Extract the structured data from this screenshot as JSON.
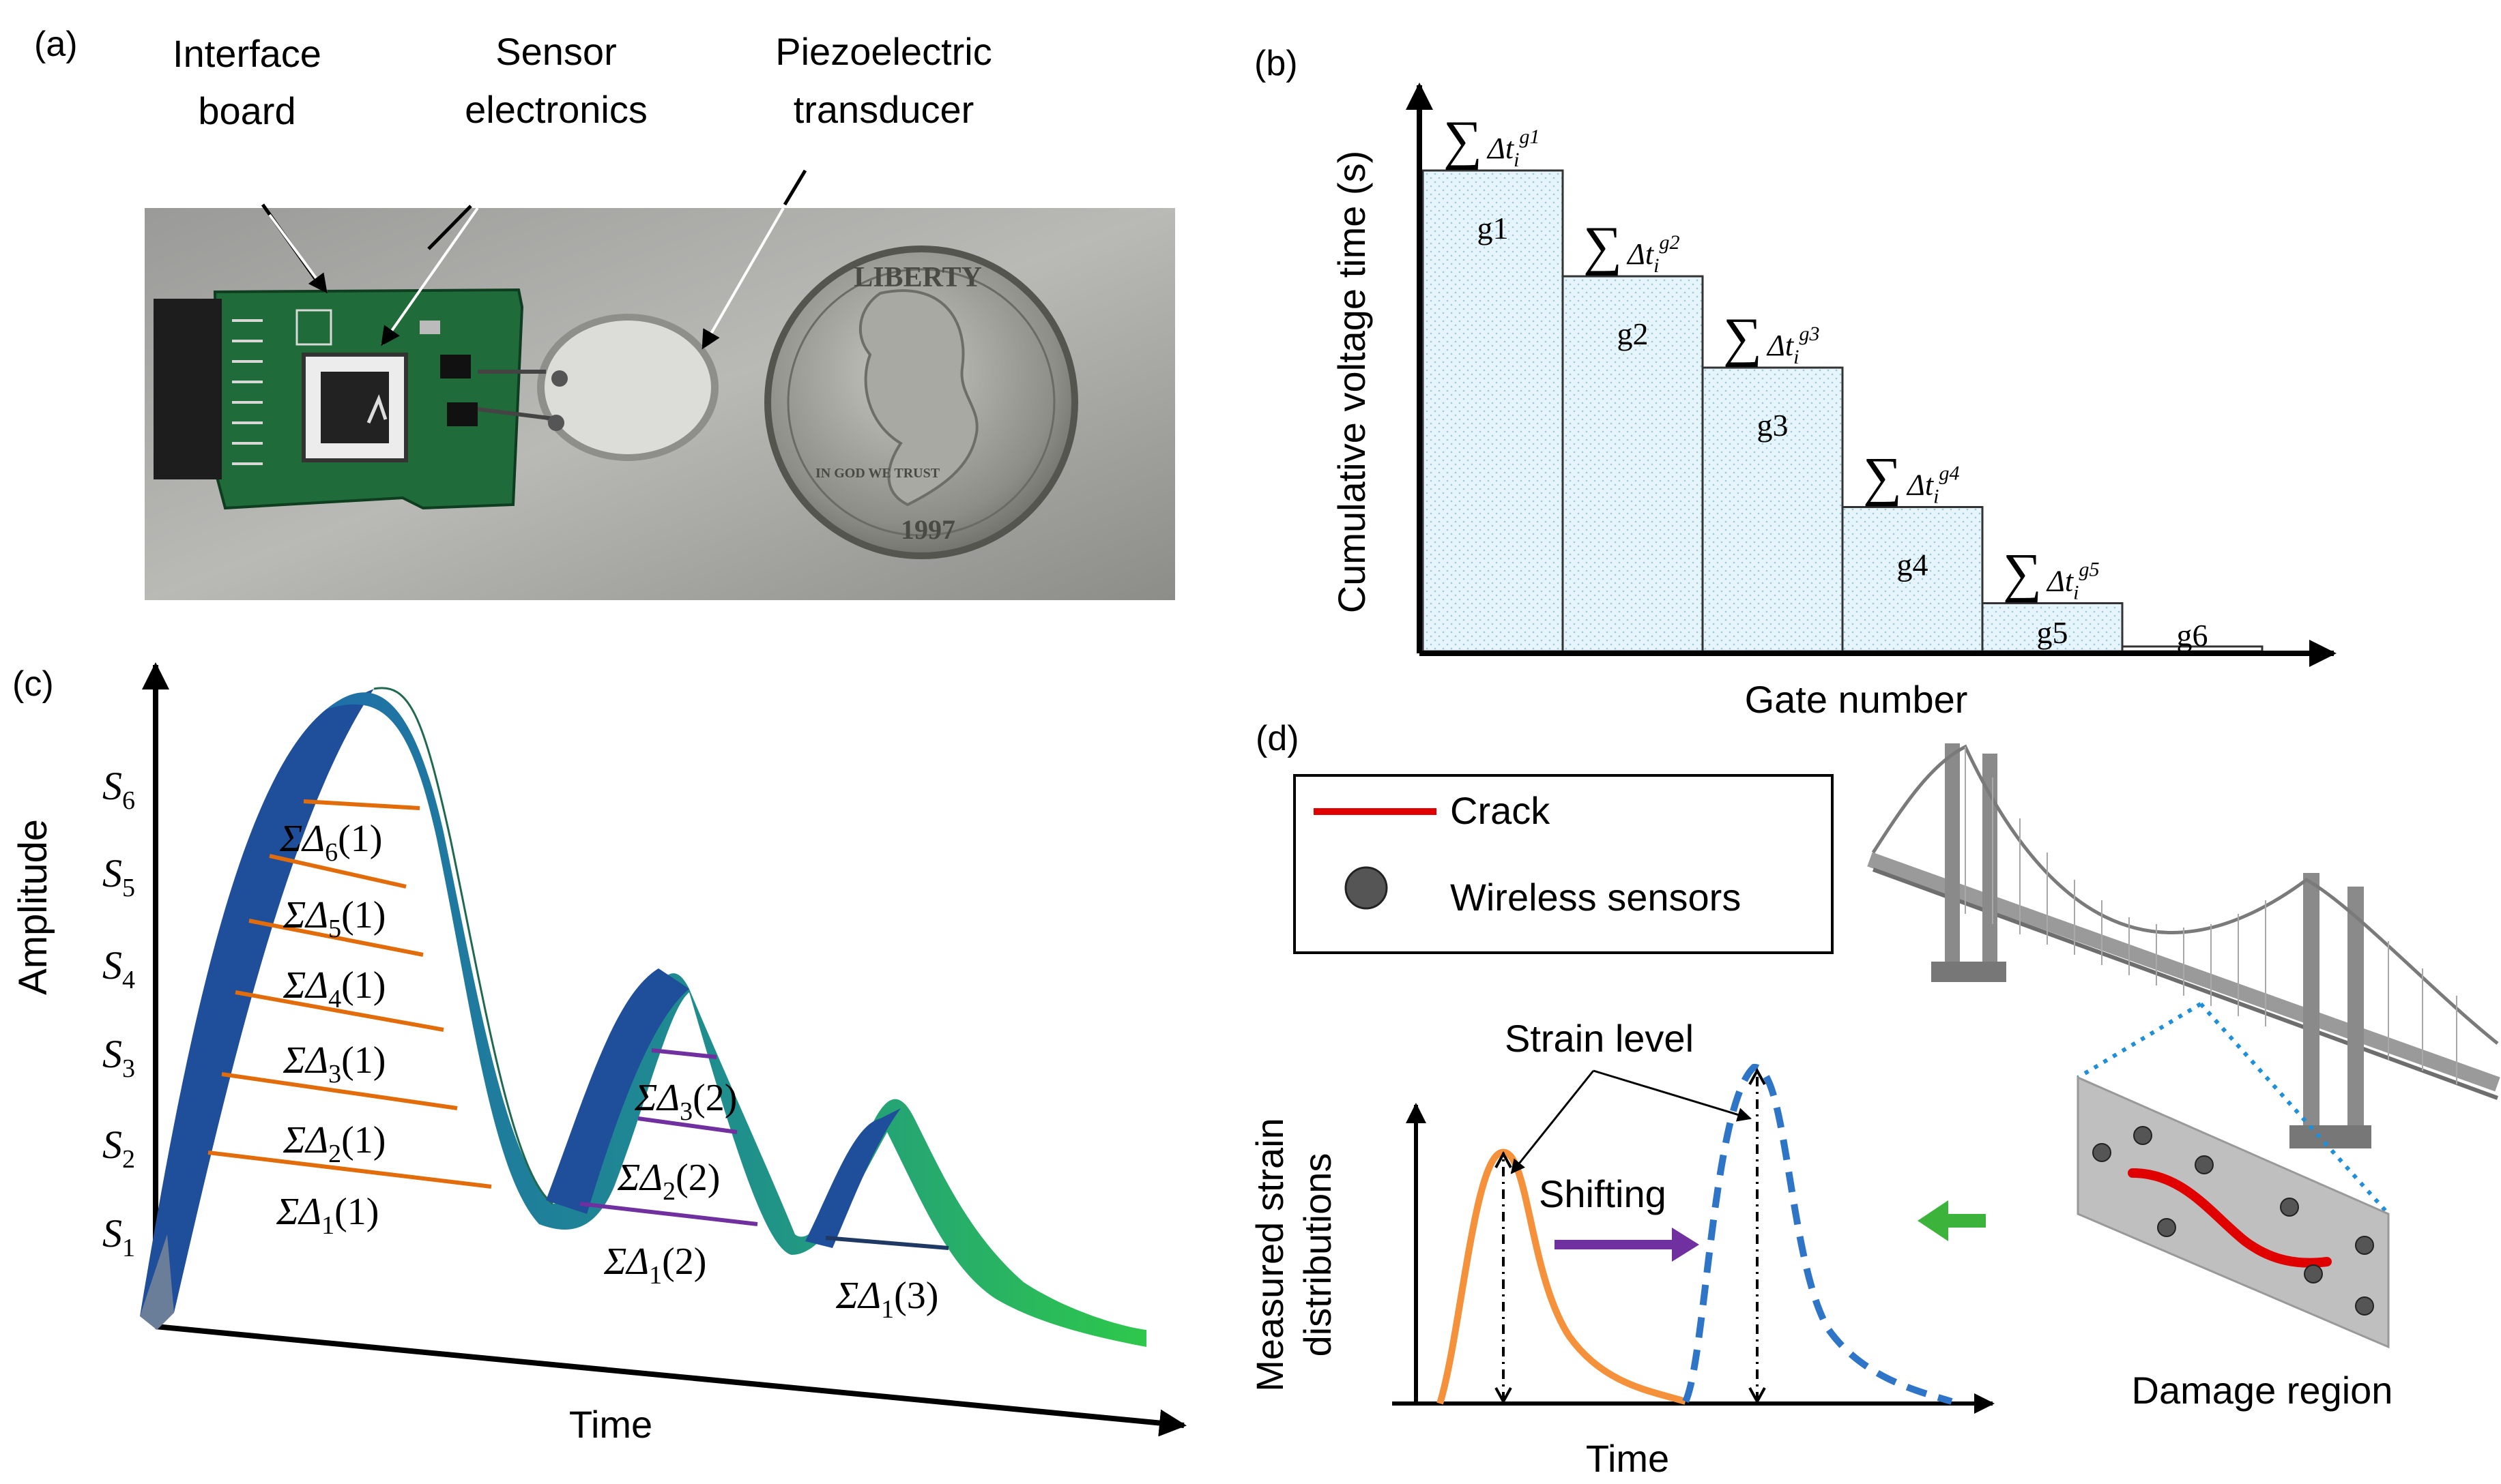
{
  "panel_a": {
    "label": "(a)",
    "callouts": [
      "Interface",
      "board",
      "Sensor",
      "electronics",
      "Piezoelectric",
      "transducer"
    ],
    "coin_text": {
      "top": "LIBERTY",
      "left": "IN GOD WE TRUST",
      "year": "1997"
    }
  },
  "panel_b": {
    "label": "(b)",
    "ylabel": "Cumulative voltage time (s)",
    "xlabel": "Gate number",
    "chart_data": {
      "type": "bar",
      "title": "",
      "xlabel": "Gate number",
      "ylabel": "Cumulative voltage time (s)",
      "categories": [
        "g1",
        "g2",
        "g3",
        "g4",
        "g5",
        "g6"
      ],
      "values": [
        100,
        78,
        59,
        30,
        10,
        1
      ],
      "value_labels": [
        "∑Δt_i^g1",
        "∑Δt_i^g2",
        "∑Δt_i^g3",
        "∑Δt_i^g4",
        "∑Δt_i^g5",
        ""
      ],
      "sum_symbol": "∑",
      "delta_t": "Δt",
      "sub": "i",
      "sups": [
        "g1",
        "g2",
        "g3",
        "g4",
        "g5"
      ]
    }
  },
  "panel_c": {
    "label": "(c)",
    "ylabel": "Amplitude",
    "xlabel": "Time",
    "levels": [
      {
        "s": "S",
        "n": "1"
      },
      {
        "s": "S",
        "n": "2"
      },
      {
        "s": "S",
        "n": "3"
      },
      {
        "s": "S",
        "n": "4"
      },
      {
        "s": "S",
        "n": "5"
      },
      {
        "s": "S",
        "n": "6"
      }
    ],
    "sum_prefix": "ΣΔ",
    "peak1": [
      {
        "k": "6",
        "p": "(1)"
      },
      {
        "k": "5",
        "p": "(1)"
      },
      {
        "k": "4",
        "p": "(1)"
      },
      {
        "k": "3",
        "p": "(1)"
      },
      {
        "k": "2",
        "p": "(1)"
      },
      {
        "k": "1",
        "p": "(1)"
      }
    ],
    "peak2": [
      {
        "k": "3",
        "p": "(2)"
      },
      {
        "k": "2",
        "p": "(2)"
      },
      {
        "k": "1",
        "p": "(2)"
      }
    ],
    "peak3": [
      {
        "k": "1",
        "p": "(3)"
      }
    ],
    "colors": {
      "peak1": "#e36c0a",
      "peak2": "#7030a0",
      "peak3": "#1f3864"
    }
  },
  "panel_d": {
    "label": "(d)",
    "legend": {
      "crack": "Crack",
      "sensors": "Wireless sensors"
    },
    "ylabel_line1": "Measured strain",
    "ylabel_line2": "distributions",
    "xlabel": "Time",
    "strain_level": "Strain level",
    "shifting": "Shifting",
    "damage_region": "Damage region",
    "colors": {
      "crack": "#e00000",
      "orange": "#f4913a",
      "blue": "#2e75c8",
      "purple": "#7030a0",
      "green_arrow": "#3cb43c"
    }
  }
}
